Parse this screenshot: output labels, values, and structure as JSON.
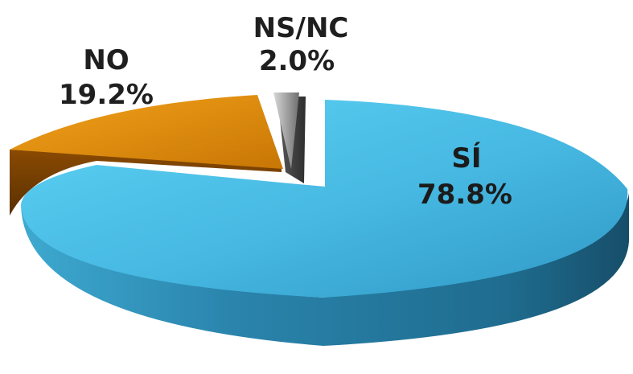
{
  "chart_data": {
    "type": "pie",
    "style": "3d-exploded",
    "slices": [
      {
        "label": "SÍ",
        "value": 78.8,
        "value_label": "78.8%",
        "color": "#4cc3ea"
      },
      {
        "label": "NO",
        "value": 19.2,
        "value_label": "19.2%",
        "color": "#e8940f"
      },
      {
        "label": "NS/NC",
        "value": 2.0,
        "value_label": "2.0%",
        "color": "#8a8a8a"
      }
    ],
    "legend": "none",
    "title": ""
  }
}
